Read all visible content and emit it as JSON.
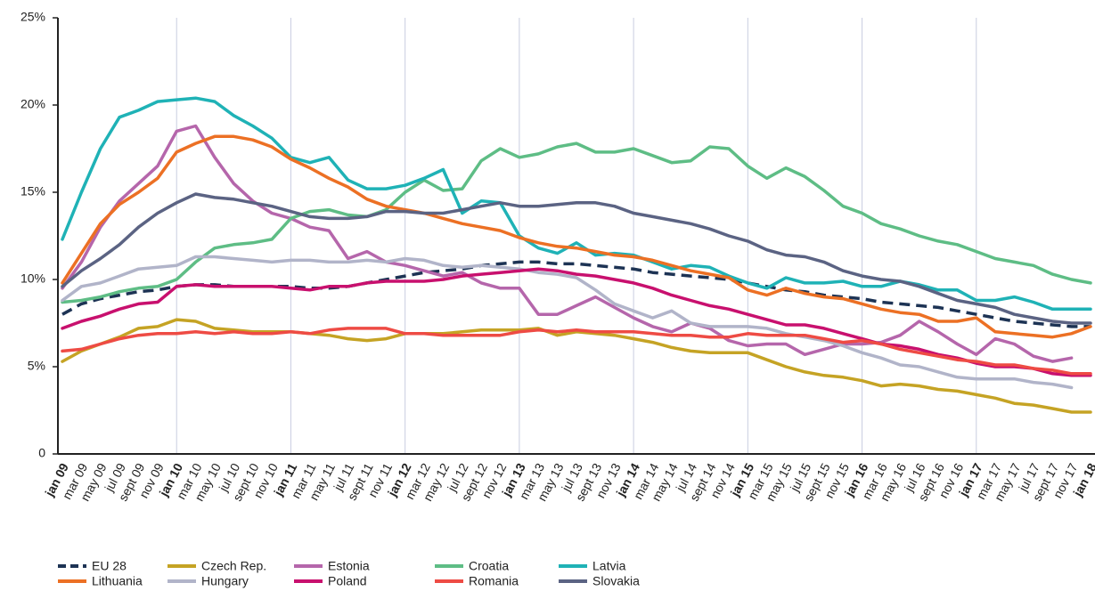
{
  "chart_data": {
    "type": "line",
    "categories": [
      "jan 09",
      "mar 09",
      "may 09",
      "jul 09",
      "sept 09",
      "nov 09",
      "jan 10",
      "mar 10",
      "may 10",
      "jul 10",
      "sept 10",
      "nov 10",
      "jan 11",
      "mar 11",
      "may 11",
      "jul 11",
      "sept 11",
      "nov 11",
      "jan 12",
      "mar 12",
      "may 12",
      "jul 12",
      "sept 12",
      "nov 12",
      "jan 13",
      "mar 13",
      "may 13",
      "jul 13",
      "sept 13",
      "nov 13",
      "jan 14",
      "mar 14",
      "may 14",
      "jul 14",
      "sept 14",
      "nov 14",
      "jan 15",
      "mar 15",
      "may 15",
      "jul 15",
      "sept 15",
      "nov 15",
      "jan 16",
      "mar 16",
      "may 16",
      "jul 16",
      "sept 16",
      "nov 16",
      "jan 17",
      "mar 17",
      "may 17",
      "jul 17",
      "sept 17",
      "nov 17",
      "jan 18"
    ],
    "ylim": [
      0,
      25
    ],
    "yticks": [
      0,
      {
        "value": 5,
        "label": "5%"
      },
      {
        "value": 10,
        "label": "10%"
      },
      {
        "value": 15,
        "label": "15%"
      },
      {
        "value": 20,
        "label": "20%"
      },
      {
        "value": 25,
        "label": "25%"
      }
    ],
    "grid": true,
    "legend": "bottom",
    "series": [
      {
        "name": "EU 28",
        "color": "#1d3354",
        "style": "dashed",
        "values": [
          8.0,
          8.6,
          8.9,
          9.1,
          9.3,
          9.4,
          9.6,
          9.7,
          9.7,
          9.6,
          9.6,
          9.6,
          9.6,
          9.5,
          9.5,
          9.6,
          9.8,
          10.0,
          10.2,
          10.4,
          10.5,
          10.6,
          10.8,
          10.9,
          11.0,
          11.0,
          10.9,
          10.9,
          10.8,
          10.7,
          10.6,
          10.4,
          10.3,
          10.2,
          10.1,
          10.0,
          9.8,
          9.6,
          9.4,
          9.3,
          9.1,
          9.0,
          8.9,
          8.7,
          8.6,
          8.5,
          8.4,
          8.2,
          8.0,
          7.8,
          7.6,
          7.5,
          7.4,
          7.3,
          7.3
        ]
      },
      {
        "name": "Czech Rep.",
        "color": "#c5a324",
        "values": [
          5.3,
          5.9,
          6.3,
          6.7,
          7.2,
          7.3,
          7.7,
          7.6,
          7.2,
          7.1,
          7.0,
          7.0,
          7.0,
          6.9,
          6.8,
          6.6,
          6.5,
          6.6,
          6.9,
          6.9,
          6.9,
          7.0,
          7.1,
          7.1,
          7.1,
          7.2,
          6.8,
          7.0,
          6.9,
          6.8,
          6.6,
          6.4,
          6.1,
          5.9,
          5.8,
          5.8,
          5.8,
          5.4,
          5.0,
          4.7,
          4.5,
          4.4,
          4.2,
          3.9,
          4.0,
          3.9,
          3.7,
          3.6,
          3.4,
          3.2,
          2.9,
          2.8,
          2.6,
          2.4,
          2.4
        ]
      },
      {
        "name": "Estonia",
        "color": "#b566ab",
        "values": [
          9.5,
          11.0,
          13.0,
          14.5,
          15.5,
          16.5,
          18.5,
          18.8,
          17.0,
          15.5,
          14.5,
          13.8,
          13.5,
          13.0,
          12.8,
          11.2,
          11.6,
          11.0,
          10.8,
          10.5,
          10.2,
          10.4,
          9.8,
          9.5,
          9.5,
          8.0,
          8.0,
          8.5,
          9.0,
          8.4,
          7.8,
          7.3,
          7.0,
          7.5,
          7.2,
          6.5,
          6.2,
          6.3,
          6.3,
          5.7,
          6.0,
          6.3,
          6.3,
          6.4,
          6.8,
          7.6,
          7.0,
          6.3,
          5.7,
          6.6,
          6.3,
          5.6,
          5.3,
          5.5,
          null
        ]
      },
      {
        "name": "Croatia",
        "color": "#5ebd85",
        "values": [
          8.7,
          8.8,
          9.0,
          9.3,
          9.5,
          9.6,
          10.0,
          11.0,
          11.8,
          12.0,
          12.1,
          12.3,
          13.5,
          13.9,
          14.0,
          13.7,
          13.6,
          14.0,
          15.0,
          15.7,
          15.1,
          15.2,
          16.8,
          17.5,
          17.0,
          17.2,
          17.6,
          17.8,
          17.3,
          17.3,
          17.5,
          17.1,
          16.7,
          16.8,
          17.6,
          17.5,
          16.5,
          15.8,
          16.4,
          15.9,
          15.1,
          14.2,
          13.8,
          13.2,
          12.9,
          12.5,
          12.2,
          12.0,
          11.6,
          11.2,
          11.0,
          10.8,
          10.3,
          10.0,
          9.8
        ]
      },
      {
        "name": "Latvia",
        "color": "#1fb2b6",
        "values": [
          12.3,
          15.0,
          17.5,
          19.3,
          19.7,
          20.2,
          20.3,
          20.4,
          20.2,
          19.4,
          18.8,
          18.1,
          17.0,
          16.7,
          17.0,
          15.7,
          15.2,
          15.2,
          15.4,
          15.8,
          16.3,
          13.8,
          14.5,
          14.4,
          12.5,
          11.8,
          11.5,
          12.1,
          11.4,
          11.5,
          11.4,
          11.0,
          10.6,
          10.8,
          10.7,
          10.2,
          9.8,
          9.5,
          10.1,
          9.8,
          9.8,
          9.9,
          9.6,
          9.6,
          9.9,
          9.7,
          9.4,
          9.4,
          8.8,
          8.8,
          9.0,
          8.7,
          8.3,
          8.3,
          8.3
        ]
      },
      {
        "name": "Lithuania",
        "color": "#ec7024",
        "values": [
          9.8,
          11.5,
          13.2,
          14.3,
          15.0,
          15.8,
          17.3,
          17.8,
          18.2,
          18.2,
          18.0,
          17.6,
          16.9,
          16.4,
          15.8,
          15.3,
          14.6,
          14.2,
          14.0,
          13.8,
          13.5,
          13.2,
          13.0,
          12.8,
          12.4,
          12.1,
          11.9,
          11.8,
          11.6,
          11.4,
          11.3,
          11.1,
          10.8,
          10.5,
          10.3,
          10.1,
          9.4,
          9.1,
          9.5,
          9.2,
          9.0,
          8.9,
          8.6,
          8.3,
          8.1,
          8.0,
          7.6,
          7.6,
          7.8,
          7.0,
          6.9,
          6.8,
          6.7,
          6.9,
          7.3
        ]
      },
      {
        "name": "Hungary",
        "color": "#b1b4c9",
        "values": [
          8.8,
          9.6,
          9.8,
          10.2,
          10.6,
          10.7,
          10.8,
          11.3,
          11.3,
          11.2,
          11.1,
          11.0,
          11.1,
          11.1,
          11.0,
          11.0,
          11.1,
          11.0,
          11.2,
          11.1,
          10.8,
          10.7,
          10.8,
          10.7,
          10.6,
          10.4,
          10.3,
          10.1,
          9.4,
          8.6,
          8.2,
          7.8,
          8.2,
          7.5,
          7.3,
          7.3,
          7.3,
          7.2,
          6.9,
          6.7,
          6.5,
          6.2,
          5.8,
          5.5,
          5.1,
          5.0,
          4.7,
          4.4,
          4.3,
          4.3,
          4.3,
          4.1,
          4.0,
          3.8,
          null
        ]
      },
      {
        "name": "Poland",
        "color": "#c8106e",
        "values": [
          7.2,
          7.6,
          7.9,
          8.3,
          8.6,
          8.7,
          9.6,
          9.7,
          9.6,
          9.6,
          9.6,
          9.6,
          9.5,
          9.4,
          9.6,
          9.6,
          9.8,
          9.9,
          9.9,
          9.9,
          10.0,
          10.2,
          10.3,
          10.4,
          10.5,
          10.6,
          10.5,
          10.3,
          10.2,
          10.0,
          9.8,
          9.5,
          9.1,
          8.8,
          8.5,
          8.3,
          8.0,
          7.7,
          7.4,
          7.4,
          7.2,
          6.9,
          6.6,
          6.3,
          6.2,
          6.0,
          5.7,
          5.5,
          5.2,
          5.0,
          5.0,
          4.9,
          4.6,
          4.5,
          4.5
        ]
      },
      {
        "name": "Romania",
        "color": "#ee4b44",
        "values": [
          5.9,
          6.0,
          6.3,
          6.6,
          6.8,
          6.9,
          6.9,
          7.0,
          6.9,
          7.0,
          6.9,
          6.9,
          7.0,
          6.9,
          7.1,
          7.2,
          7.2,
          7.2,
          6.9,
          6.9,
          6.8,
          6.8,
          6.8,
          6.8,
          7.0,
          7.1,
          7.0,
          7.1,
          7.0,
          7.0,
          7.0,
          6.9,
          6.8,
          6.8,
          6.7,
          6.7,
          6.9,
          6.8,
          6.8,
          6.8,
          6.6,
          6.4,
          6.5,
          6.3,
          6.0,
          5.8,
          5.6,
          5.4,
          5.3,
          5.1,
          5.1,
          4.9,
          4.8,
          4.6,
          4.6
        ]
      },
      {
        "name": "Slovakia",
        "color": "#5b6383",
        "values": [
          9.6,
          10.5,
          11.2,
          12.0,
          13.0,
          13.8,
          14.4,
          14.9,
          14.7,
          14.6,
          14.4,
          14.2,
          13.9,
          13.6,
          13.5,
          13.5,
          13.6,
          13.9,
          13.9,
          13.8,
          13.8,
          14.0,
          14.2,
          14.4,
          14.2,
          14.2,
          14.3,
          14.4,
          14.4,
          14.2,
          13.8,
          13.6,
          13.4,
          13.2,
          12.9,
          12.5,
          12.2,
          11.7,
          11.4,
          11.3,
          11.0,
          10.5,
          10.2,
          10.0,
          9.9,
          9.6,
          9.2,
          8.8,
          8.6,
          8.4,
          8.0,
          7.8,
          7.6,
          7.5,
          7.5
        ]
      }
    ]
  }
}
